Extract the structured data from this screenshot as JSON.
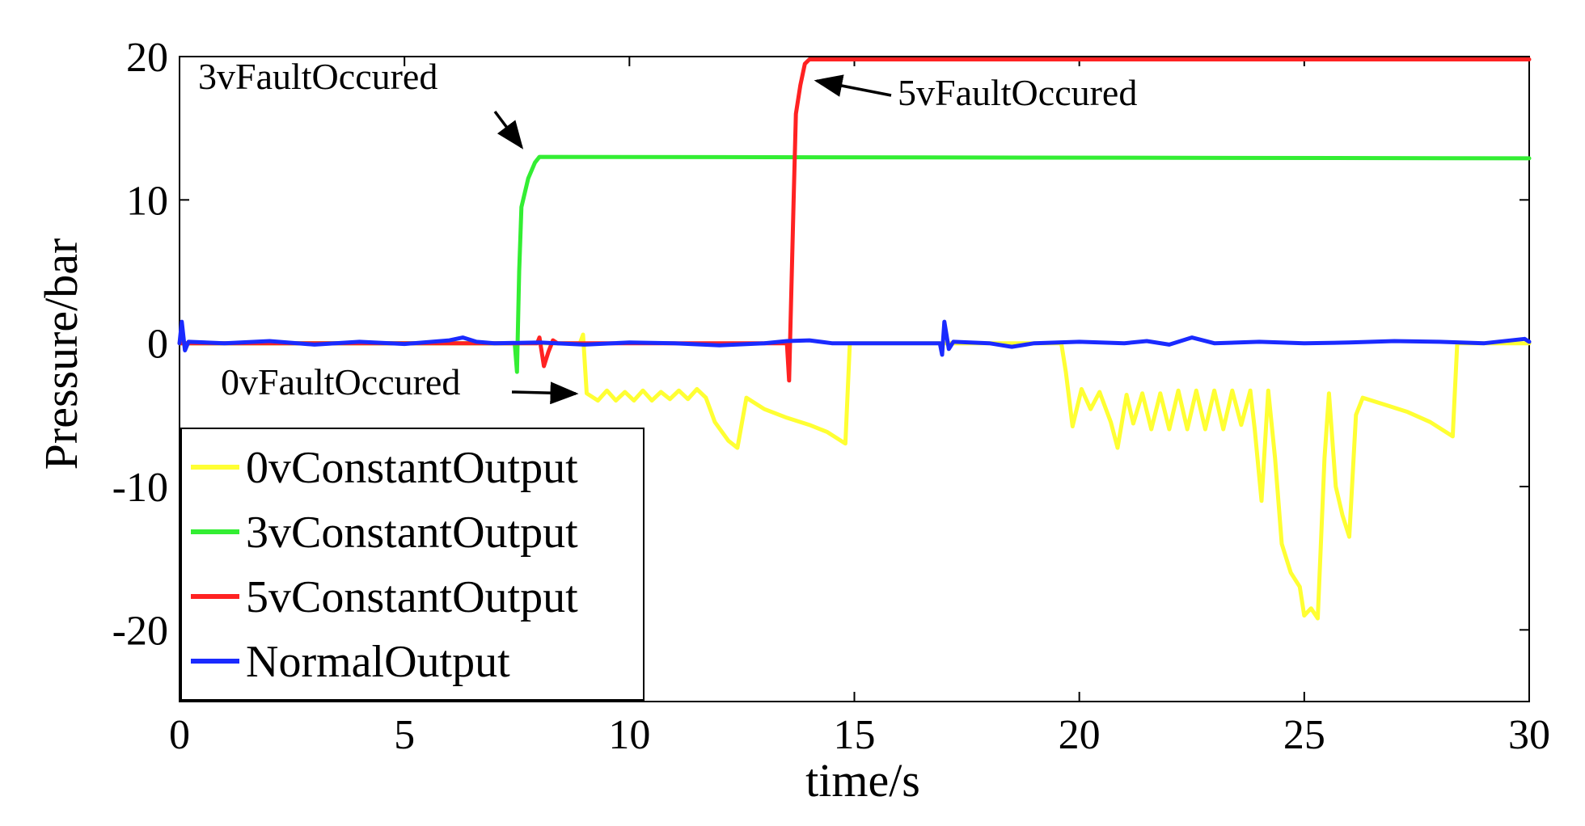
{
  "chart_data": {
    "type": "line",
    "title": "",
    "xlabel": "time/s",
    "ylabel": "Pressure/bar",
    "xlim": [
      0,
      30
    ],
    "ylim": [
      -25,
      20
    ],
    "xticks": [
      0,
      5,
      10,
      15,
      20,
      25,
      30
    ],
    "yticks": [
      -20,
      -10,
      0,
      10,
      20
    ],
    "grid": false,
    "legend_position": "lower-left",
    "series": [
      {
        "name": "0vConstantOutput",
        "color": "#ffff33",
        "points": [
          [
            0,
            0
          ],
          [
            8.9,
            0
          ],
          [
            8.97,
            0.6
          ],
          [
            9.05,
            -3.5
          ],
          [
            9.3,
            -4
          ],
          [
            9.5,
            -3.3
          ],
          [
            9.7,
            -4
          ],
          [
            9.9,
            -3.4
          ],
          [
            10.1,
            -4
          ],
          [
            10.3,
            -3.3
          ],
          [
            10.5,
            -4
          ],
          [
            10.7,
            -3.4
          ],
          [
            10.9,
            -3.9
          ],
          [
            11.1,
            -3.3
          ],
          [
            11.3,
            -3.9
          ],
          [
            11.5,
            -3.2
          ],
          [
            11.7,
            -3.8
          ],
          [
            11.9,
            -5.5
          ],
          [
            12.2,
            -6.8
          ],
          [
            12.4,
            -7.3
          ],
          [
            12.6,
            -3.8
          ],
          [
            13,
            -4.6
          ],
          [
            13.5,
            -5.2
          ],
          [
            14,
            -5.7
          ],
          [
            14.4,
            -6.2
          ],
          [
            14.6,
            -6.6
          ],
          [
            14.8,
            -7.0
          ],
          [
            14.9,
            0
          ],
          [
            19.6,
            0
          ],
          [
            19.7,
            -2
          ],
          [
            19.85,
            -5.8
          ],
          [
            20.05,
            -3.2
          ],
          [
            20.25,
            -4.6
          ],
          [
            20.45,
            -3.4
          ],
          [
            20.7,
            -5.5
          ],
          [
            20.85,
            -7.3
          ],
          [
            21.05,
            -3.6
          ],
          [
            21.2,
            -5.6
          ],
          [
            21.4,
            -3.5
          ],
          [
            21.6,
            -6
          ],
          [
            21.8,
            -3.5
          ],
          [
            22,
            -6
          ],
          [
            22.2,
            -3.3
          ],
          [
            22.4,
            -6
          ],
          [
            22.6,
            -3.3
          ],
          [
            22.8,
            -6
          ],
          [
            23,
            -3.3
          ],
          [
            23.2,
            -6
          ],
          [
            23.4,
            -3.3
          ],
          [
            23.6,
            -5.7
          ],
          [
            23.8,
            -3.3
          ],
          [
            23.9,
            -6
          ],
          [
            24.05,
            -11
          ],
          [
            24.2,
            -3.3
          ],
          [
            24.35,
            -8
          ],
          [
            24.5,
            -14
          ],
          [
            24.7,
            -16
          ],
          [
            24.9,
            -17
          ],
          [
            25.0,
            -19
          ],
          [
            25.15,
            -18.5
          ],
          [
            25.3,
            -19.2
          ],
          [
            25.45,
            -8
          ],
          [
            25.55,
            -3.5
          ],
          [
            25.7,
            -10
          ],
          [
            25.85,
            -12
          ],
          [
            26.0,
            -13.5
          ],
          [
            26.15,
            -5
          ],
          [
            26.3,
            -3.8
          ],
          [
            26.8,
            -4.3
          ],
          [
            27.3,
            -4.8
          ],
          [
            27.8,
            -5.5
          ],
          [
            28.3,
            -6.5
          ],
          [
            28.4,
            0
          ],
          [
            30,
            0
          ]
        ]
      },
      {
        "name": "3vConstantOutput",
        "color": "#33ee33",
        "points": [
          [
            0,
            0
          ],
          [
            7.45,
            0
          ],
          [
            7.5,
            -2
          ],
          [
            7.55,
            5
          ],
          [
            7.6,
            9.5
          ],
          [
            7.75,
            11.5
          ],
          [
            7.9,
            12.6
          ],
          [
            8.0,
            13
          ],
          [
            30,
            12.9
          ]
        ]
      },
      {
        "name": "5vConstantOutput",
        "color": "#ff2222",
        "points": [
          [
            0,
            0
          ],
          [
            7.95,
            0
          ],
          [
            8.0,
            0.4
          ],
          [
            8.1,
            -1.6
          ],
          [
            8.2,
            -0.6
          ],
          [
            8.3,
            0.2
          ],
          [
            8.4,
            0
          ],
          [
            13.5,
            0
          ],
          [
            13.55,
            -2.6
          ],
          [
            13.65,
            10
          ],
          [
            13.7,
            16
          ],
          [
            13.8,
            18
          ],
          [
            13.9,
            19.5
          ],
          [
            14.0,
            19.8
          ],
          [
            30,
            19.8
          ]
        ]
      },
      {
        "name": "NormalOutput",
        "color": "#1a2aff",
        "points": [
          [
            0,
            0
          ],
          [
            0.05,
            1.5
          ],
          [
            0.12,
            -0.5
          ],
          [
            0.2,
            0.1
          ],
          [
            1,
            0
          ],
          [
            2,
            0.15
          ],
          [
            3,
            -0.1
          ],
          [
            4,
            0.1
          ],
          [
            5,
            -0.05
          ],
          [
            6,
            0.2
          ],
          [
            6.3,
            0.4
          ],
          [
            6.6,
            0.1
          ],
          [
            7,
            0
          ],
          [
            8,
            0.05
          ],
          [
            9,
            -0.1
          ],
          [
            10,
            0.05
          ],
          [
            11,
            0
          ],
          [
            12,
            -0.15
          ],
          [
            13,
            0
          ],
          [
            13.5,
            0.15
          ],
          [
            14,
            0.2
          ],
          [
            14.5,
            0
          ],
          [
            15,
            0
          ],
          [
            16,
            0
          ],
          [
            16.9,
            0
          ],
          [
            16.95,
            -0.8
          ],
          [
            17.0,
            1.5
          ],
          [
            17.1,
            -0.4
          ],
          [
            17.2,
            0.1
          ],
          [
            18,
            0
          ],
          [
            18.5,
            -0.25
          ],
          [
            19,
            0
          ],
          [
            20,
            0.1
          ],
          [
            21,
            0
          ],
          [
            21.5,
            0.15
          ],
          [
            22,
            -0.1
          ],
          [
            22.5,
            0.4
          ],
          [
            23,
            0
          ],
          [
            24,
            0.1
          ],
          [
            25,
            0
          ],
          [
            26,
            0.05
          ],
          [
            27,
            0.15
          ],
          [
            28,
            0.1
          ],
          [
            29,
            0
          ],
          [
            29.9,
            0.3
          ],
          [
            30,
            0.1
          ]
        ]
      }
    ],
    "annotations": [
      {
        "text": "3vFaultOccured",
        "x": 1.2,
        "y": 17.8,
        "arrow_to": [
          7.9,
          13.2
        ]
      },
      {
        "text": "5vFaultOccured",
        "x": 15.5,
        "y": 16.5,
        "arrow_to": [
          14.1,
          18.8
        ]
      },
      {
        "text": "0vFaultOccured",
        "x": 1.0,
        "y": -3.4,
        "arrow_to": [
          8.9,
          -3.6
        ]
      }
    ]
  }
}
